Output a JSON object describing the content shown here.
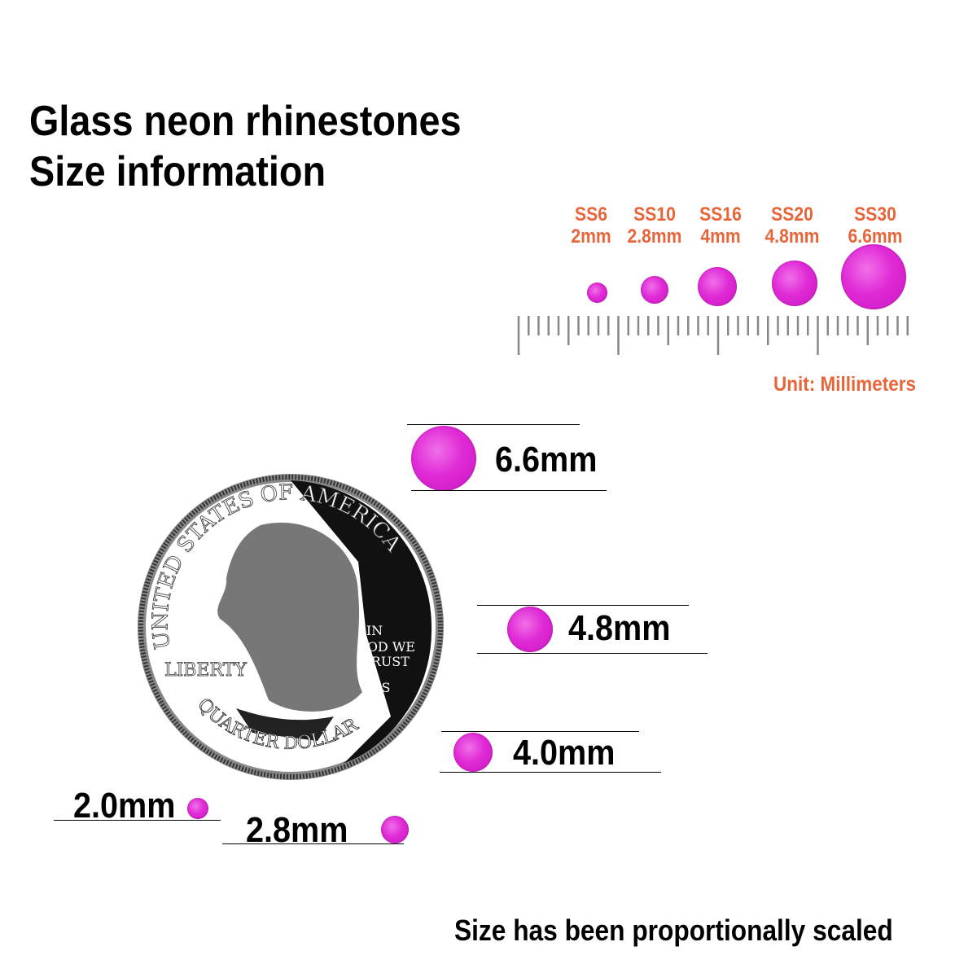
{
  "title": {
    "line1": "Glass neon rhinestones",
    "line2": "Size information"
  },
  "size_chart": {
    "items": [
      {
        "code": "SS6",
        "size": "2mm"
      },
      {
        "code": "SS10",
        "size": "2.8mm"
      },
      {
        "code": "SS16",
        "size": "4mm"
      },
      {
        "code": "SS20",
        "size": "4.8mm"
      },
      {
        "code": "SS30",
        "size": "6.6mm"
      }
    ],
    "unit_label": "Unit: Millimeters"
  },
  "comparison": {
    "coin_text": {
      "top": "UNITED STATES OF AMERICA",
      "motto": [
        "IN",
        "GOD WE",
        "TRUST"
      ],
      "liberty": "LIBERTY",
      "bottom": "QUARTER DOLLAR",
      "mint": "S"
    },
    "labels": [
      "6.6mm",
      "4.8mm",
      "4.0mm",
      "2.0mm",
      "2.8mm"
    ]
  },
  "note": "Size has been proportionally scaled",
  "colors": {
    "accent": "#e8653a",
    "stone": "#e02ad6"
  }
}
